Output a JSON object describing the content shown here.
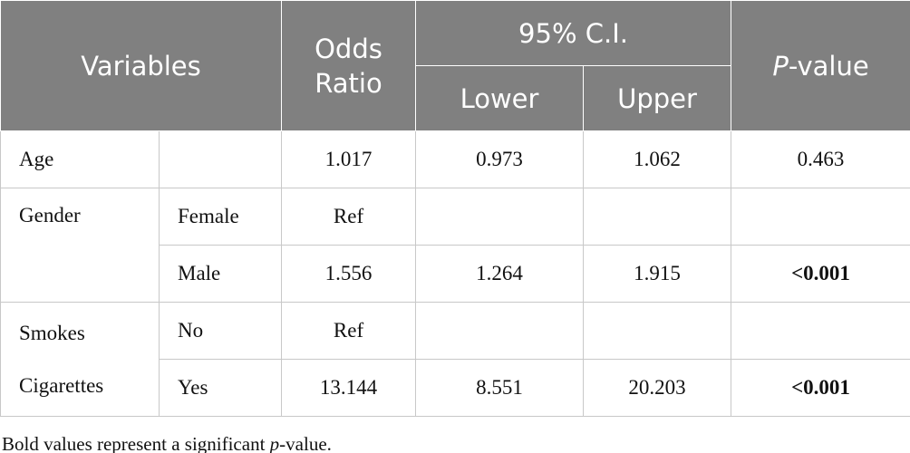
{
  "table": {
    "header": {
      "variables": "Variables",
      "odds_ratio": "Odds Ratio",
      "ci": "95% C.I.",
      "lower": "Lower",
      "upper": "Upper",
      "p_value": [
        "P",
        "-value"
      ]
    },
    "rows": [
      {
        "variable": "Age",
        "odds_ratio": "1.017",
        "lower": "0.973",
        "upper": "1.062",
        "p_value": "0.463"
      },
      {
        "variable": "Gender",
        "level": "Female",
        "odds_ratio": "Ref"
      },
      {
        "level": "Male",
        "odds_ratio": "1.556",
        "lower": "1.264",
        "upper": "1.915",
        "p_value": "<0.001"
      },
      {
        "variable": "Smokes Cigarettes",
        "level": "No",
        "odds_ratio": "Ref"
      },
      {
        "level": "Yes",
        "odds_ratio": "13.144",
        "lower": "8.551",
        "upper": "20.203",
        "p_value": "<0.001"
      }
    ],
    "footnote": [
      "Bold values represent a significant ",
      "p",
      "-value."
    ]
  }
}
